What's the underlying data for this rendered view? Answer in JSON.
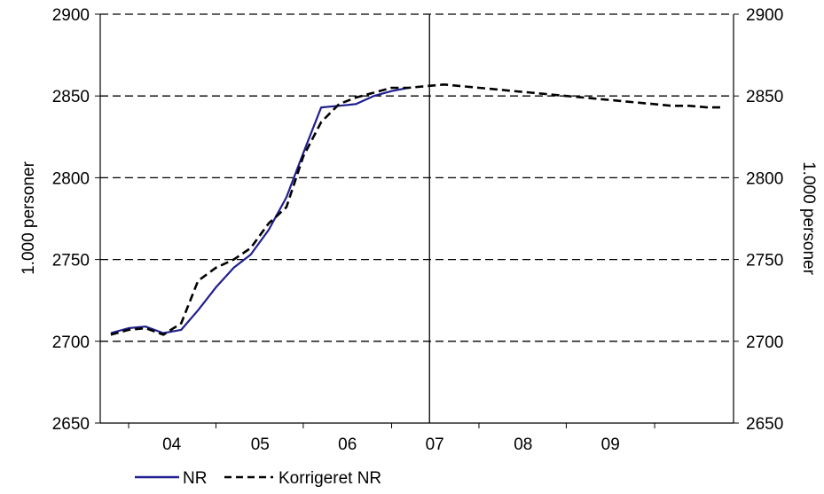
{
  "chart_data": {
    "type": "line",
    "title": "",
    "ylabel_left": "1.000 personer",
    "ylabel_right": "1.000 personer",
    "xlabel": "",
    "ylim": [
      2650,
      2900
    ],
    "y_ticks": [
      2650,
      2700,
      2750,
      2800,
      2850,
      2900
    ],
    "xlim": [
      2003.65,
      2009.67
    ],
    "x_tick_labels": [
      {
        "label": "04",
        "x": 2004.33
      },
      {
        "label": "05",
        "x": 2005.17
      },
      {
        "label": "06",
        "x": 2006.0
      },
      {
        "label": "07",
        "x": 2006.83
      },
      {
        "label": "08",
        "x": 2007.67
      },
      {
        "label": "09",
        "x": 2008.5
      }
    ],
    "x_minor_ticks": [
      2003.92,
      2004.75,
      2005.58,
      2006.42,
      2007.25,
      2008.08,
      2008.92
    ],
    "vertical_marker_x": 2006.78,
    "grid": "horizontal dashed",
    "legend_position": "bottom-left",
    "series": [
      {
        "name": "NR",
        "color": "#1f1f8f",
        "style": "solid",
        "x": [
          2003.75,
          2003.92,
          2004.08,
          2004.25,
          2004.42,
          2004.58,
          2004.75,
          2004.92,
          2005.08,
          2005.25,
          2005.42,
          2005.58,
          2005.75,
          2005.92,
          2006.08,
          2006.25,
          2006.42,
          2006.58
        ],
        "y": [
          2705,
          2708,
          2709,
          2705,
          2707,
          2719,
          2733,
          2745,
          2753,
          2768,
          2788,
          2815,
          2843,
          2844,
          2845,
          2850,
          2853,
          2855
        ]
      },
      {
        "name": "Korrigeret NR",
        "color": "#000000",
        "style": "dashed",
        "x": [
          2003.75,
          2003.92,
          2004.08,
          2004.25,
          2004.42,
          2004.58,
          2004.75,
          2004.92,
          2005.08,
          2005.25,
          2005.42,
          2005.58,
          2005.75,
          2005.92,
          2006.08,
          2006.25,
          2006.42,
          2006.58,
          2006.75,
          2006.92,
          2007.08,
          2007.25,
          2007.42,
          2007.58,
          2007.75,
          2007.92,
          2008.08,
          2008.25,
          2008.42,
          2008.58,
          2008.75,
          2008.92,
          2009.08,
          2009.25,
          2009.42,
          2009.58
        ],
        "y": [
          2704,
          2707,
          2708,
          2704,
          2711,
          2737,
          2745,
          2750,
          2757,
          2772,
          2782,
          2813,
          2834,
          2845,
          2849,
          2852,
          2855,
          2855,
          2856,
          2857,
          2856,
          2855,
          2854,
          2853,
          2852,
          2851,
          2850,
          2849,
          2848,
          2847,
          2846,
          2845,
          2844,
          2844,
          2843,
          2843
        ]
      }
    ]
  }
}
